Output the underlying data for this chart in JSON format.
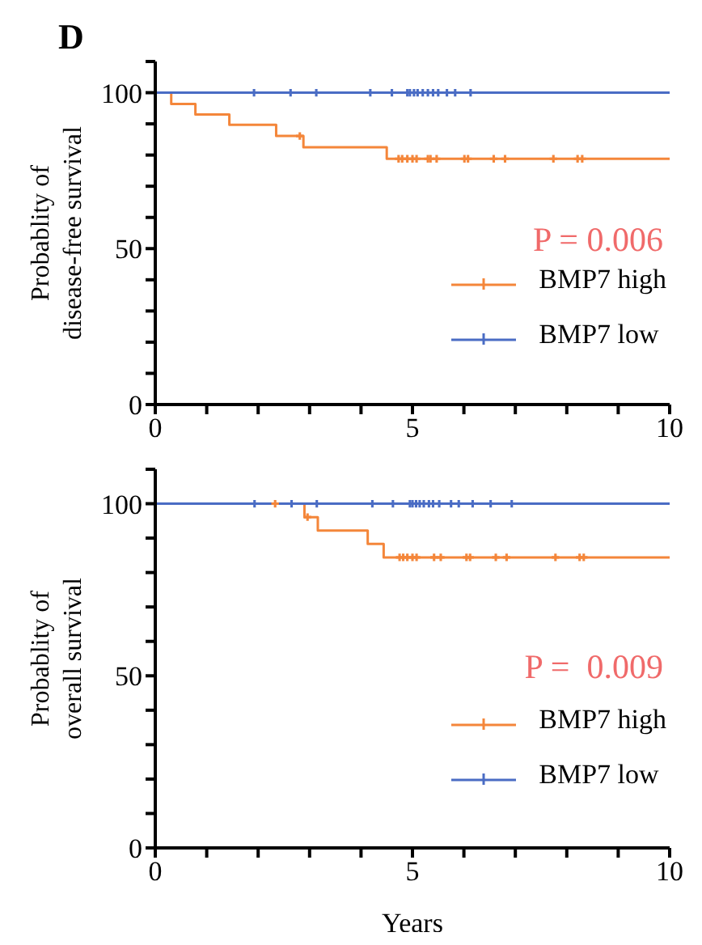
{
  "chart_data": [
    {
      "type": "step",
      "title": "D",
      "ylabel": "Probablity of\ndisease-free survival",
      "annotations": [
        "P = 0.006"
      ],
      "legend": "bottom right",
      "grid": false,
      "xlim": [
        0,
        10
      ],
      "xticks": [
        0,
        {
          "value": 1,
          "label": null
        },
        {
          "value": 2,
          "label": null
        },
        {
          "value": 3,
          "label": null
        },
        {
          "value": 4,
          "label": null
        },
        5,
        {
          "value": 6,
          "label": null
        },
        {
          "value": 7,
          "label": null
        },
        {
          "value": 8,
          "label": null
        },
        {
          "value": 9,
          "label": null
        },
        10
      ],
      "ylim": [
        0,
        110
      ],
      "yticks": [
        0,
        {
          "value": 10,
          "label": null
        },
        {
          "value": 20,
          "label": null
        },
        {
          "value": 30,
          "label": null
        },
        {
          "value": 40,
          "label": null
        },
        50,
        {
          "value": 60,
          "label": null
        },
        {
          "value": 70,
          "label": null
        },
        {
          "value": 80,
          "label": null
        },
        {
          "value": 90,
          "label": null
        },
        100,
        {
          "value": 110,
          "label": null
        }
      ],
      "series": [
        {
          "name": "BMP7 high",
          "color": "#f4863a",
          "x": [
            0,
            0.31,
            0.78,
            1.44,
            2.35,
            2.88,
            4.5,
            10
          ],
          "values": [
            100,
            96.4,
            93,
            89.7,
            86.1,
            82.5,
            78.8,
            78.8
          ]
        },
        {
          "name": "BMP7 low",
          "color": "#4a6cc4",
          "x": [
            0,
            10
          ],
          "values": [
            100,
            100
          ]
        },
        {
          "type": "scatter",
          "marker": "cross",
          "color": "#f4863a",
          "x": [
            2.81,
            4.73,
            4.8,
            4.9,
            5.0,
            5.08,
            5.3,
            5.35,
            5.47,
            6.01,
            6.08,
            6.58,
            6.8,
            7.74,
            8.21,
            8.3
          ],
          "values": [
            86.1,
            78.8,
            78.8,
            78.8,
            78.8,
            78.8,
            78.8,
            78.8,
            78.8,
            78.8,
            78.8,
            78.8,
            78.8,
            78.8,
            78.8,
            78.8
          ]
        },
        {
          "type": "scatter",
          "marker": "cross",
          "color": "#4a6cc4",
          "x": [
            1.92,
            2.63,
            3.13,
            4.18,
            4.6,
            4.9,
            4.95,
            5.03,
            5.1,
            5.2,
            5.3,
            5.4,
            5.5,
            5.67,
            5.83,
            6.13
          ],
          "values": [
            100,
            100,
            100,
            100,
            100,
            100,
            100,
            100,
            100,
            100,
            100,
            100,
            100,
            100,
            100,
            100
          ]
        }
      ]
    },
    {
      "type": "step",
      "xlabel": "Years",
      "ylabel": "Probablity of\noverall survival",
      "annotations": [
        "P =  0.009"
      ],
      "legend": "bottom right",
      "grid": false,
      "xlim": [
        0,
        10
      ],
      "xticks": [
        0,
        {
          "value": 1,
          "label": null
        },
        {
          "value": 2,
          "label": null
        },
        {
          "value": 3,
          "label": null
        },
        {
          "value": 4,
          "label": null
        },
        5,
        {
          "value": 6,
          "label": null
        },
        {
          "value": 7,
          "label": null
        },
        {
          "value": 8,
          "label": null
        },
        {
          "value": 9,
          "label": null
        },
        10
      ],
      "ylim": [
        0,
        110
      ],
      "yticks": [
        0,
        {
          "value": 10,
          "label": null
        },
        {
          "value": 20,
          "label": null
        },
        {
          "value": 30,
          "label": null
        },
        {
          "value": 40,
          "label": null
        },
        50,
        {
          "value": 60,
          "label": null
        },
        {
          "value": 70,
          "label": null
        },
        {
          "value": 80,
          "label": null
        },
        {
          "value": 90,
          "label": null
        },
        100,
        {
          "value": 110,
          "label": null
        }
      ],
      "series": [
        {
          "name": "BMP7 high",
          "color": "#f4863a",
          "x": [
            0,
            2.9,
            3.16,
            4.13,
            4.44,
            10
          ],
          "values": [
            100,
            96.1,
            92.2,
            88.3,
            84.4,
            84.4
          ]
        },
        {
          "name": "BMP7 low",
          "color": "#4a6cc4",
          "x": [
            0,
            10
          ],
          "values": [
            100,
            100
          ]
        },
        {
          "type": "scatter",
          "marker": "cross",
          "color": "#f4863a",
          "x": [
            2.33,
            2.96,
            4.75,
            4.82,
            4.9,
            5.0,
            5.08,
            5.42,
            5.55,
            6.05,
            6.12,
            6.62,
            6.83,
            7.78,
            8.25,
            8.33
          ],
          "values": [
            100,
            96.1,
            84.4,
            84.4,
            84.4,
            84.4,
            84.4,
            84.4,
            84.4,
            84.4,
            84.4,
            84.4,
            84.4,
            84.4,
            84.4,
            84.4
          ]
        },
        {
          "type": "scatter",
          "marker": "cross",
          "color": "#4a6cc4",
          "x": [
            1.93,
            2.65,
            3.14,
            4.22,
            4.62,
            4.95,
            5.0,
            5.07,
            5.14,
            5.22,
            5.32,
            5.4,
            5.52,
            5.75,
            5.9,
            6.17,
            6.52,
            6.93
          ],
          "values": [
            100,
            100,
            100,
            100,
            100,
            100,
            100,
            100,
            100,
            100,
            100,
            100,
            100,
            100,
            100,
            100,
            100,
            100
          ]
        }
      ]
    }
  ]
}
